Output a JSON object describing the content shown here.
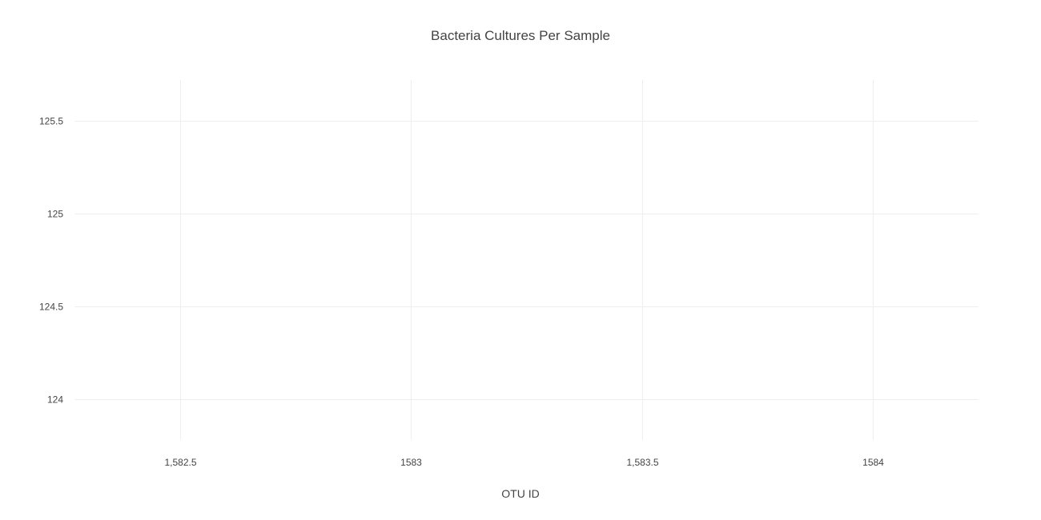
{
  "chart_data": {
    "type": "scatter",
    "title": "Bacteria Cultures Per Sample",
    "xlabel": "OTU ID",
    "ylabel": "",
    "xlim": [
      1582.27,
      1584.23
    ],
    "ylim": [
      123.78,
      125.72
    ],
    "x_ticks": [
      {
        "value": 1582.5,
        "label": "1,582.5"
      },
      {
        "value": 1583,
        "label": "1583"
      },
      {
        "value": 1583.5,
        "label": "1,583.5"
      },
      {
        "value": 1584,
        "label": "1584"
      }
    ],
    "y_ticks": [
      {
        "value": 124,
        "label": "124"
      },
      {
        "value": 124.5,
        "label": "124.5"
      },
      {
        "value": 125,
        "label": "125"
      },
      {
        "value": 125.5,
        "label": "125.5"
      }
    ],
    "grid": true,
    "series": [],
    "colors": {
      "grid": "#eeeeee",
      "text": "#444444",
      "background": "#ffffff"
    }
  }
}
